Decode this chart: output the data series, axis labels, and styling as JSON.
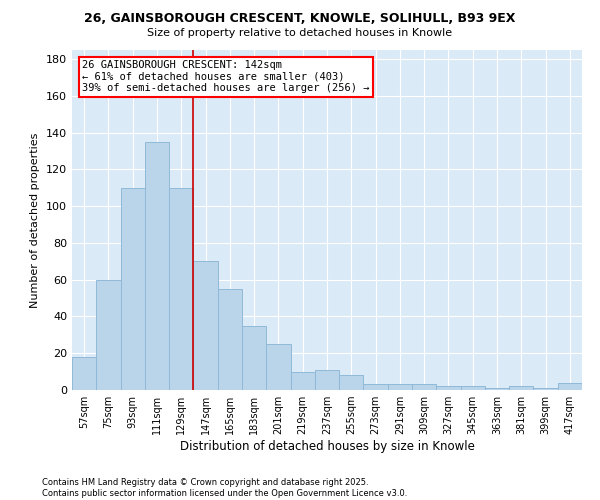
{
  "title_line1": "26, GAINSBOROUGH CRESCENT, KNOWLE, SOLIHULL, B93 9EX",
  "title_line2": "Size of property relative to detached houses in Knowle",
  "xlabel": "Distribution of detached houses by size in Knowle",
  "ylabel": "Number of detached properties",
  "background_color": "#daeaf7",
  "bar_color": "#bad4ea",
  "bar_edge_color": "#90b8d8",
  "property_label": "26 GAINSBOROUGH CRESCENT: 142sqm",
  "annotation_left": "← 61% of detached houses are smaller (403)",
  "annotation_right": "39% of semi-detached houses are larger (256) →",
  "categories": [
    "57sqm",
    "75sqm",
    "93sqm",
    "111sqm",
    "129sqm",
    "147sqm",
    "165sqm",
    "183sqm",
    "201sqm",
    "219sqm",
    "237sqm",
    "255sqm",
    "273sqm",
    "291sqm",
    "309sqm",
    "327sqm",
    "345sqm",
    "363sqm",
    "381sqm",
    "399sqm",
    "417sqm"
  ],
  "values": [
    18,
    60,
    110,
    135,
    110,
    70,
    55,
    35,
    25,
    10,
    11,
    8,
    3,
    3,
    3,
    2,
    2,
    1,
    2,
    1,
    4
  ],
  "ylim": [
    0,
    185
  ],
  "yticks": [
    0,
    20,
    40,
    60,
    80,
    100,
    120,
    140,
    160,
    180
  ],
  "vline_position": 5,
  "footer_line1": "Contains HM Land Registry data © Crown copyright and database right 2025.",
  "footer_line2": "Contains public sector information licensed under the Open Government Licence v3.0."
}
